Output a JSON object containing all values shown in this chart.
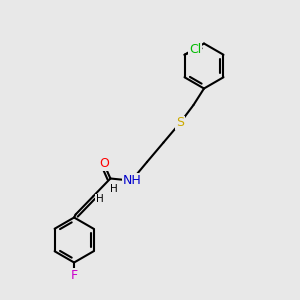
{
  "bg_color": "#e8e8e8",
  "bond_color": "#000000",
  "bond_width": 1.5,
  "atom_colors": {
    "O": "#ff0000",
    "N": "#0000cd",
    "S": "#ccaa00",
    "Cl": "#00bb00",
    "F": "#cc00cc",
    "C": "#000000",
    "H": "#000000"
  },
  "font_size": 9,
  "font_size_small": 7.5
}
